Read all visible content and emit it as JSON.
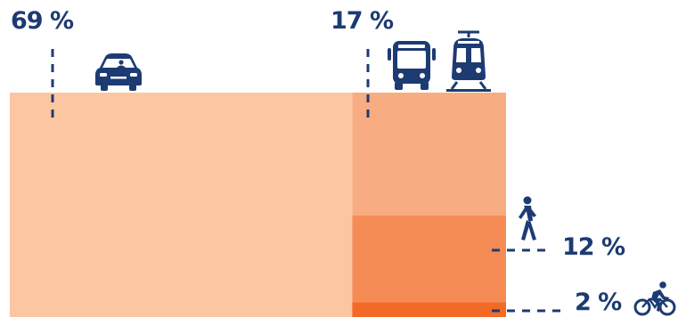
{
  "chart_data": {
    "type": "area-proportional",
    "title": "",
    "total_percent": 100,
    "segments": [
      {
        "label": "69 %",
        "value": 69,
        "mode": "car-icon",
        "color": "#fbc6a1"
      },
      {
        "label": "17 %",
        "value": 17,
        "mode": "bus-tram-icons",
        "color": "#f8ac82"
      },
      {
        "label": "12 %",
        "value": 12,
        "mode": "pedestrian-icon",
        "color": "#f68c55"
      },
      {
        "label": "2 %",
        "value": 2,
        "mode": "cyclist-icon",
        "color": "#f26a26"
      }
    ],
    "label_color": "#1d3b73"
  }
}
